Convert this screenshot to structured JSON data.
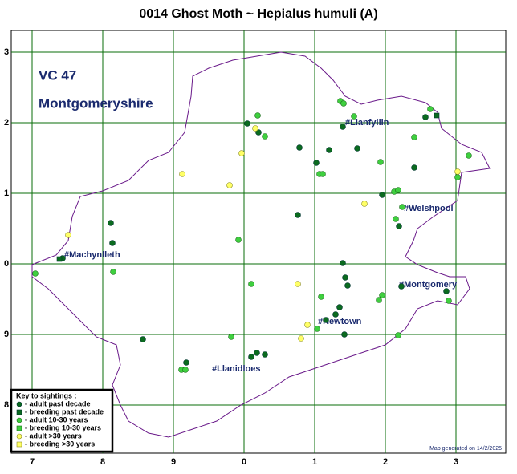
{
  "title": "0014 Ghost Moth ~ Hepialus humuli (A)",
  "region": {
    "code": "VC 47",
    "name": "Montgomeryshire"
  },
  "grid": {
    "y_labels": [
      "3",
      "2",
      "1",
      "0",
      "9",
      "8"
    ],
    "x_labels": [
      "7",
      "8",
      "9",
      "0",
      "1",
      "2",
      "3"
    ]
  },
  "places": [
    "#Llanfyllin",
    "#Welshpool",
    "#Machynlleth",
    "#Montgomery",
    "#Newtown",
    "#Llanidloes"
  ],
  "key": {
    "heading": "Key to sightings :",
    "items": [
      "- adult past decade",
      "- breeding past decade",
      "- adult 10-30 years",
      "- breeding 10-30 years",
      "- adult >30 years",
      "- breeding >30 years"
    ]
  },
  "footer": "Map generated on 14/2/2025"
}
